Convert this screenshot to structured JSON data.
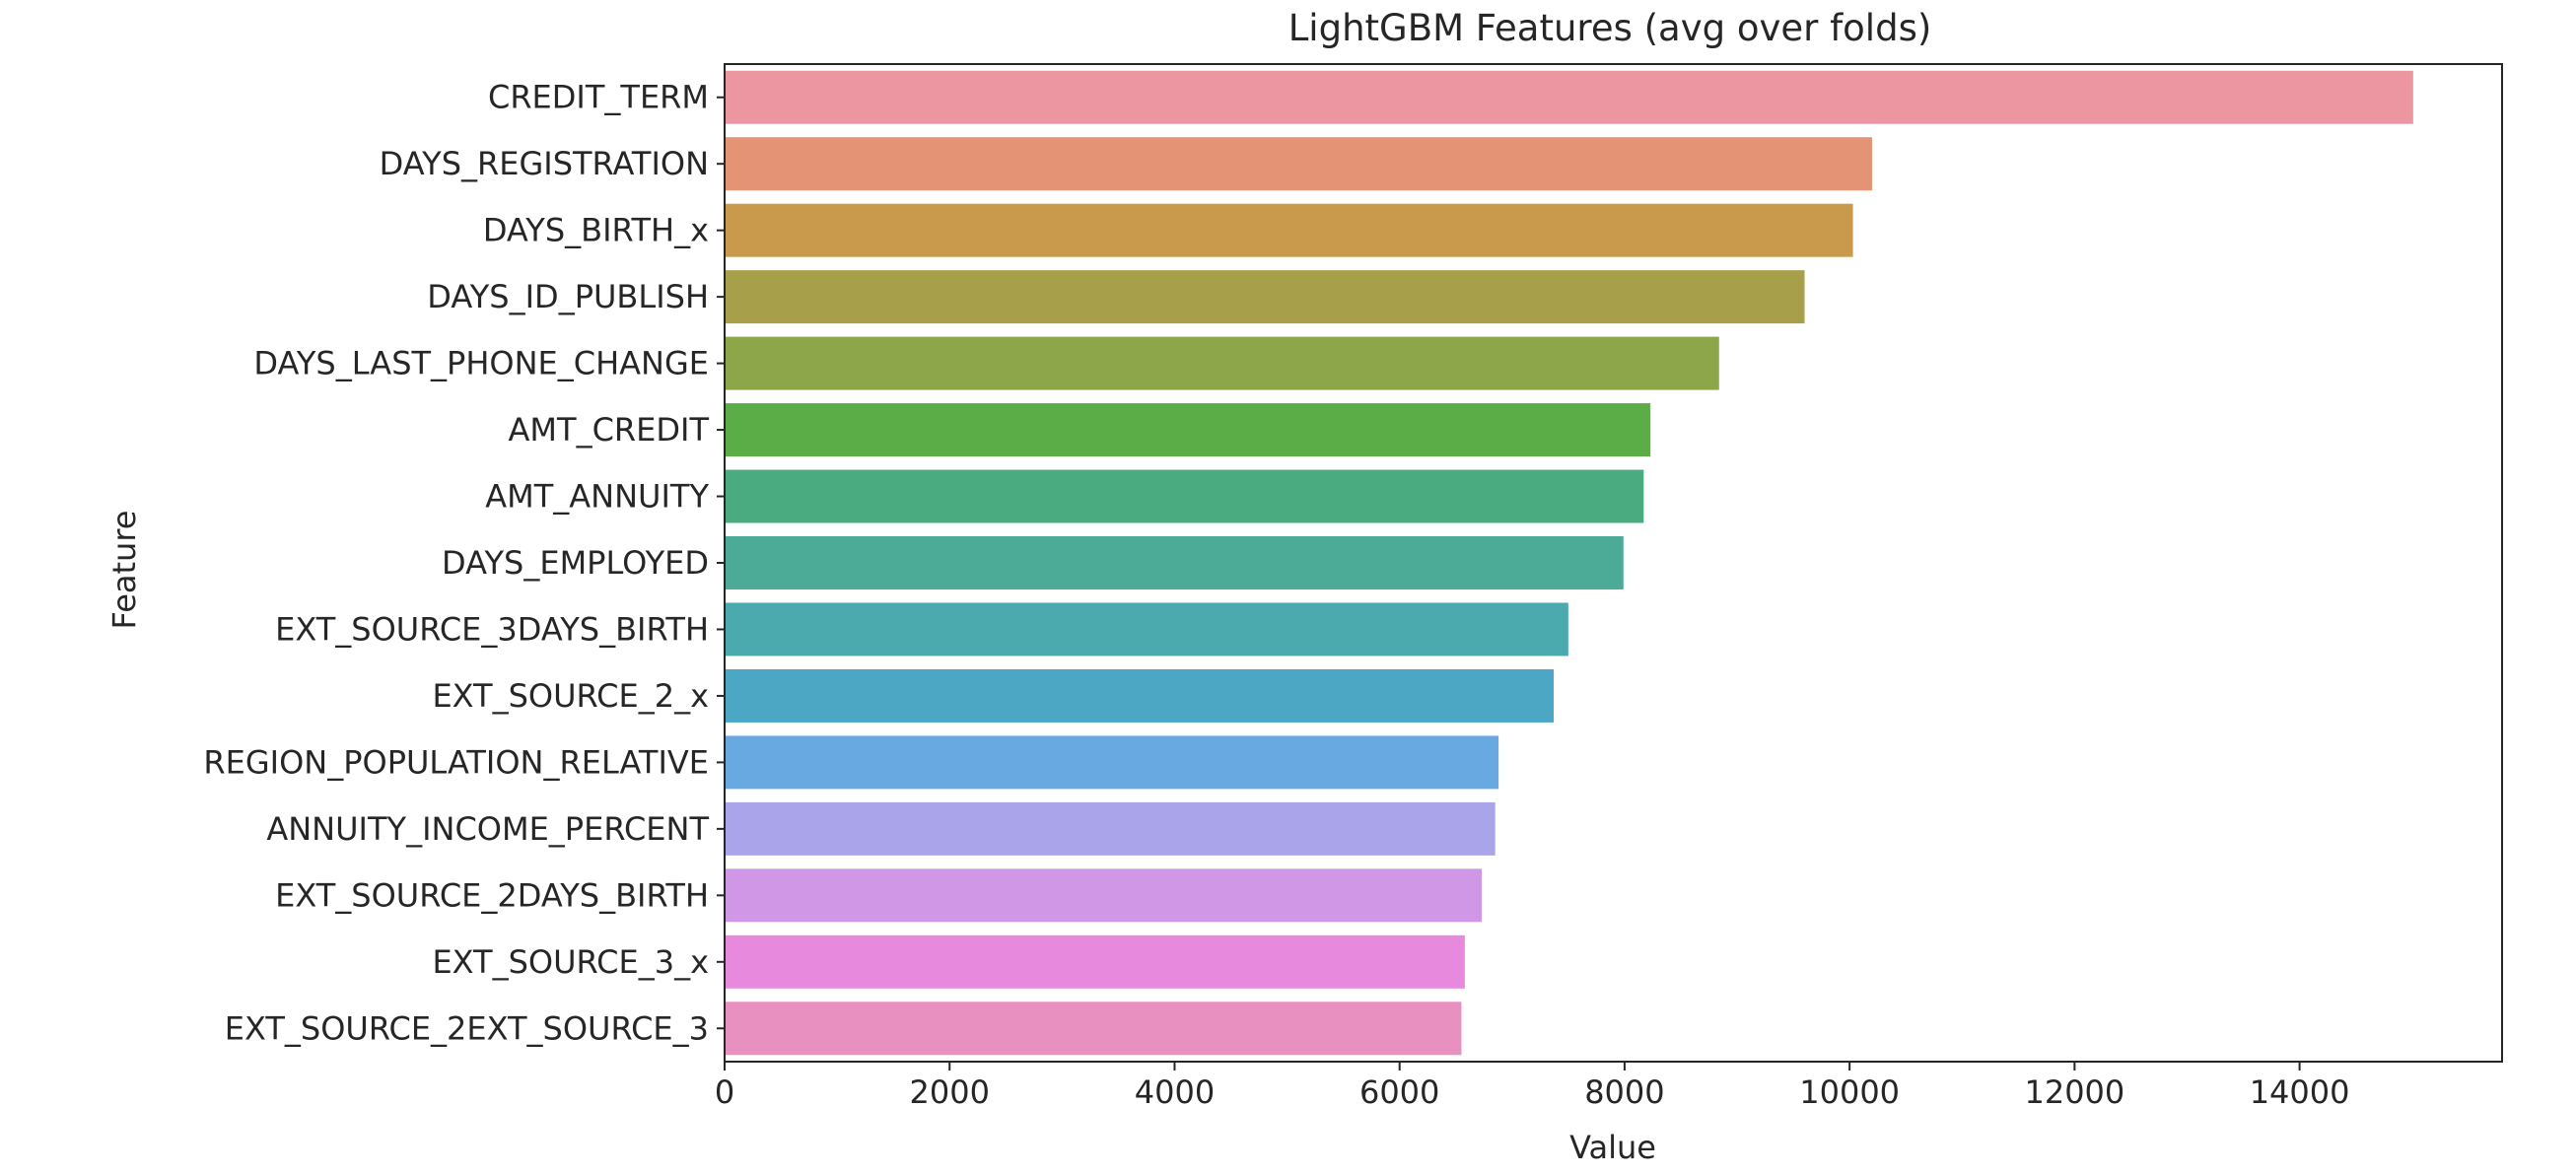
{
  "chart_data": {
    "type": "bar",
    "orientation": "horizontal",
    "title": "LightGBM Features (avg over folds)",
    "xlabel": "Value",
    "ylabel": "Feature",
    "xlim": [
      0,
      15800
    ],
    "xticks": [
      0,
      2000,
      4000,
      6000,
      8000,
      10000,
      12000,
      14000
    ],
    "grid": false,
    "categories": [
      "CREDIT_TERM",
      "DAYS_REGISTRATION",
      "DAYS_BIRTH_x",
      "DAYS_ID_PUBLISH",
      "DAYS_LAST_PHONE_CHANGE",
      "AMT_CREDIT",
      "AMT_ANNUITY",
      "DAYS_EMPLOYED",
      "EXT_SOURCE_3DAYS_BIRTH",
      "EXT_SOURCE_2_x",
      "REGION_POPULATION_RELATIVE",
      "ANNUITY_INCOME_PERCENT",
      "EXT_SOURCE_2DAYS_BIRTH",
      "EXT_SOURCE_3_x",
      "EXT_SOURCE_2EXT_SOURCE_3"
    ],
    "values": [
      15010,
      10200,
      10030,
      9600,
      8840,
      8230,
      8170,
      7990,
      7500,
      7370,
      6880,
      6850,
      6730,
      6580,
      6550
    ],
    "colors": [
      "#ec96a1",
      "#e49474",
      "#c99a4b",
      "#a79f4a",
      "#8ea64a",
      "#5bad48",
      "#4bab80",
      "#4bab97",
      "#4baaad",
      "#4ba7c3",
      "#68a9e2",
      "#aaa5ea",
      "#cf97e6",
      "#e78ade",
      "#e890c0"
    ]
  }
}
